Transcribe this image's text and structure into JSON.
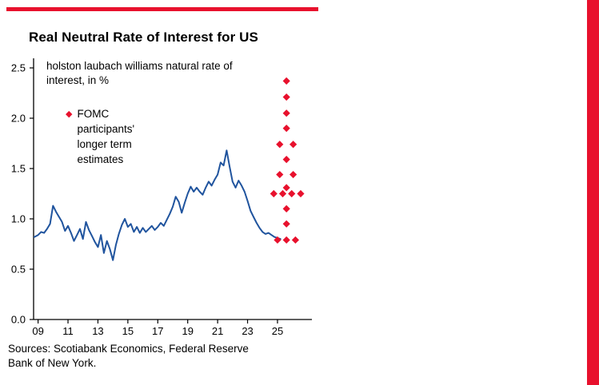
{
  "page": {
    "title": "Real Neutral Rate of Interest for US",
    "annotation": "holston laubach williams natural rate of interest, in %",
    "legend_marker": "◆",
    "legend_label": "FOMC participants' longer term estimates",
    "sources": "Sources: Scotiabank Economics, Federal Reserve Bank of New York.",
    "colors": {
      "accent_red": "#e8112d",
      "line_blue": "#20549e",
      "axis_black": "#000000"
    }
  },
  "chart_data": {
    "type": "line",
    "title": "Real Neutral Rate of Interest for US",
    "subtitle": "holston laubach williams natural rate of interest, in %",
    "xlabel": "",
    "ylabel": "%",
    "grid": false,
    "legend_position": "upper-left-inside",
    "xlim": [
      2008.7,
      2027.3
    ],
    "ylim": [
      0,
      2.5
    ],
    "x_tick_labels": [
      "09",
      "11",
      "13",
      "15",
      "17",
      "19",
      "21",
      "23",
      "25"
    ],
    "x_tick_years": [
      2009,
      2011,
      2013,
      2015,
      2017,
      2019,
      2021,
      2023,
      2025
    ],
    "y_tick_labels": [
      "0.0",
      "0.5",
      "1.0",
      "1.5",
      "2.0",
      "2.5"
    ],
    "y_tick_values": [
      0,
      0.5,
      1.0,
      1.5,
      2.0,
      2.5
    ],
    "series": [
      {
        "name": "holston laubach williams natural rate of interest, in %",
        "type": "line",
        "points": [
          [
            2008.75,
            0.82
          ],
          [
            2009.0,
            0.84
          ],
          [
            2009.2,
            0.87
          ],
          [
            2009.4,
            0.86
          ],
          [
            2009.6,
            0.9
          ],
          [
            2009.8,
            0.95
          ],
          [
            2010.0,
            1.13
          ],
          [
            2010.2,
            1.07
          ],
          [
            2010.4,
            1.02
          ],
          [
            2010.6,
            0.97
          ],
          [
            2010.8,
            0.88
          ],
          [
            2011.0,
            0.93
          ],
          [
            2011.2,
            0.86
          ],
          [
            2011.4,
            0.78
          ],
          [
            2011.6,
            0.84
          ],
          [
            2011.8,
            0.9
          ],
          [
            2012.0,
            0.8
          ],
          [
            2012.2,
            0.97
          ],
          [
            2012.4,
            0.89
          ],
          [
            2012.6,
            0.83
          ],
          [
            2012.8,
            0.77
          ],
          [
            2013.0,
            0.72
          ],
          [
            2013.2,
            0.84
          ],
          [
            2013.4,
            0.66
          ],
          [
            2013.6,
            0.78
          ],
          [
            2013.8,
            0.7
          ],
          [
            2014.0,
            0.59
          ],
          [
            2014.2,
            0.74
          ],
          [
            2014.4,
            0.85
          ],
          [
            2014.6,
            0.94
          ],
          [
            2014.8,
            1.0
          ],
          [
            2015.0,
            0.92
          ],
          [
            2015.2,
            0.95
          ],
          [
            2015.4,
            0.87
          ],
          [
            2015.6,
            0.92
          ],
          [
            2015.8,
            0.86
          ],
          [
            2016.0,
            0.91
          ],
          [
            2016.2,
            0.87
          ],
          [
            2016.4,
            0.9
          ],
          [
            2016.6,
            0.93
          ],
          [
            2016.8,
            0.89
          ],
          [
            2017.0,
            0.92
          ],
          [
            2017.2,
            0.96
          ],
          [
            2017.4,
            0.93
          ],
          [
            2017.6,
            0.99
          ],
          [
            2017.8,
            1.05
          ],
          [
            2018.0,
            1.12
          ],
          [
            2018.2,
            1.22
          ],
          [
            2018.4,
            1.17
          ],
          [
            2018.6,
            1.06
          ],
          [
            2018.8,
            1.16
          ],
          [
            2019.0,
            1.25
          ],
          [
            2019.2,
            1.32
          ],
          [
            2019.4,
            1.27
          ],
          [
            2019.6,
            1.31
          ],
          [
            2019.8,
            1.27
          ],
          [
            2020.0,
            1.24
          ],
          [
            2020.2,
            1.31
          ],
          [
            2020.4,
            1.37
          ],
          [
            2020.6,
            1.33
          ],
          [
            2020.8,
            1.39
          ],
          [
            2021.0,
            1.44
          ],
          [
            2021.2,
            1.56
          ],
          [
            2021.4,
            1.53
          ],
          [
            2021.6,
            1.68
          ],
          [
            2021.8,
            1.52
          ],
          [
            2022.0,
            1.37
          ],
          [
            2022.2,
            1.31
          ],
          [
            2022.4,
            1.38
          ],
          [
            2022.6,
            1.33
          ],
          [
            2022.8,
            1.27
          ],
          [
            2023.0,
            1.18
          ],
          [
            2023.2,
            1.08
          ],
          [
            2023.4,
            1.02
          ],
          [
            2023.6,
            0.96
          ],
          [
            2023.8,
            0.91
          ],
          [
            2024.0,
            0.87
          ],
          [
            2024.2,
            0.85
          ],
          [
            2024.4,
            0.86
          ],
          [
            2024.6,
            0.84
          ],
          [
            2024.8,
            0.82
          ],
          [
            2025.0,
            0.81
          ],
          [
            2025.2,
            0.8
          ]
        ]
      },
      {
        "name": "FOMC participants' longer term estimates",
        "type": "scatter",
        "marker": "diamond",
        "points": [
          [
            2025.6,
            2.37
          ],
          [
            2025.6,
            2.21
          ],
          [
            2025.6,
            2.05
          ],
          [
            2025.6,
            1.9
          ],
          [
            2025.15,
            1.74
          ],
          [
            2026.05,
            1.74
          ],
          [
            2025.6,
            1.59
          ],
          [
            2025.15,
            1.44
          ],
          [
            2026.05,
            1.44
          ],
          [
            2025.6,
            1.31
          ],
          [
            2024.75,
            1.25
          ],
          [
            2025.35,
            1.25
          ],
          [
            2025.95,
            1.25
          ],
          [
            2026.55,
            1.25
          ],
          [
            2025.6,
            1.1
          ],
          [
            2025.6,
            0.95
          ],
          [
            2025.0,
            0.79
          ],
          [
            2025.6,
            0.79
          ],
          [
            2026.2,
            0.79
          ]
        ]
      }
    ]
  }
}
